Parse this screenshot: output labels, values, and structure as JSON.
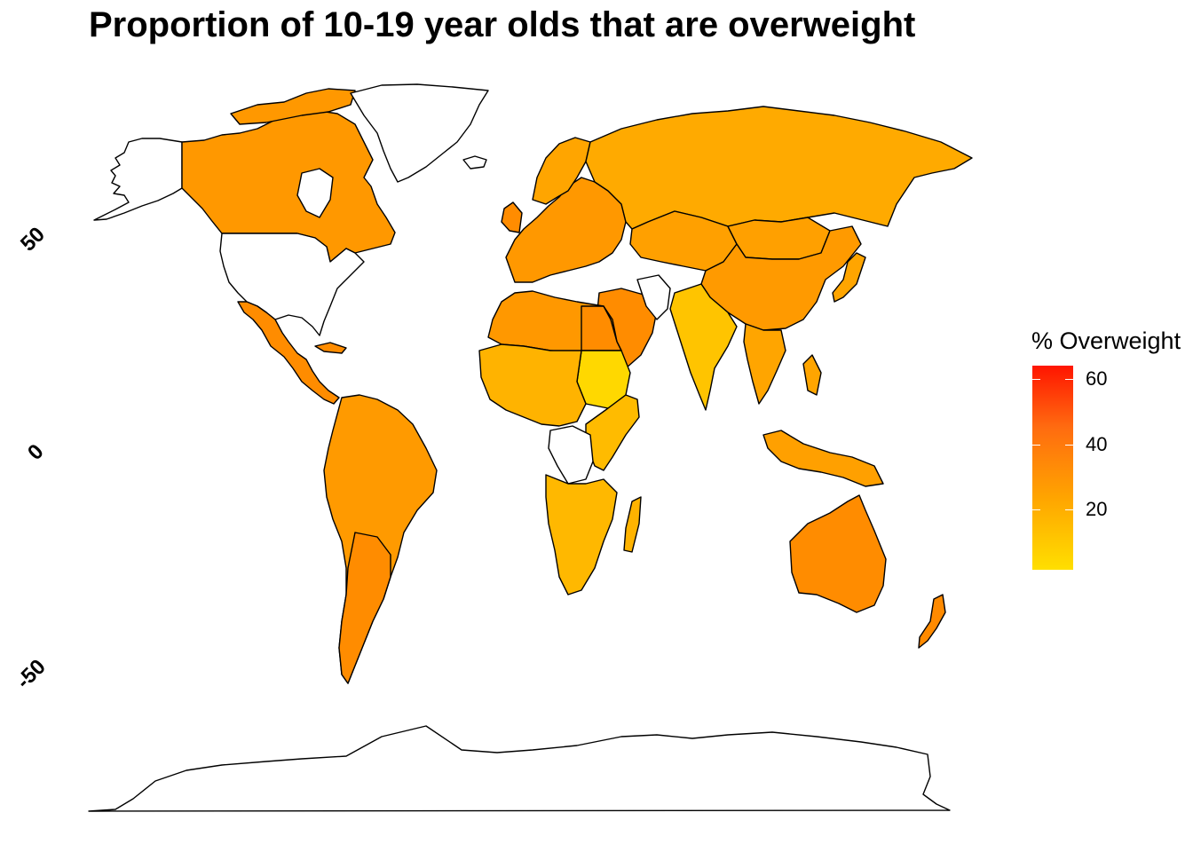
{
  "title": "Proportion of 10-19 year olds that are overweight",
  "axis": {
    "lat_ticks": [
      "50",
      "0",
      "-50"
    ]
  },
  "legend": {
    "title": "% Overweight",
    "ticks": [
      "60",
      "40",
      "20"
    ],
    "scale_range": [
      1,
      63
    ],
    "colors": {
      "low": "#ffdf00",
      "mid": "#ffa500",
      "high": "#ff1500"
    }
  },
  "map_colors": {
    "no_data": "#ffffff",
    "outline": "#000000"
  },
  "chart_data": {
    "type": "heatmap",
    "title": "Proportion of 10-19 year olds that are overweight",
    "legend_title": "% Overweight",
    "legend_ticks": [
      20,
      40,
      60
    ],
    "value_range": [
      1,
      63
    ],
    "y_ticks": [
      50,
      0,
      -50
    ],
    "regions": [
      {
        "name": "Canada",
        "value": 30
      },
      {
        "name": "Greenland",
        "value": null
      },
      {
        "name": "United States",
        "value": null
      },
      {
        "name": "Mexico",
        "value": 37
      },
      {
        "name": "Brazil",
        "value": 29
      },
      {
        "name": "Argentina",
        "value": 35
      },
      {
        "name": "Russia",
        "value": 23
      },
      {
        "name": "China",
        "value": 27
      },
      {
        "name": "India",
        "value": 9
      },
      {
        "name": "Saudi Arabia",
        "value": 37
      },
      {
        "name": "Egypt",
        "value": 33
      },
      {
        "name": "Sudan",
        "value": 6
      },
      {
        "name": "Australia",
        "value": 35
      },
      {
        "name": "New Zealand",
        "value": 38
      },
      {
        "name": "Kazakhstan",
        "value": 22
      },
      {
        "name": "Mongolia",
        "value": 24
      },
      {
        "name": "Iran",
        "value": null
      }
    ]
  }
}
